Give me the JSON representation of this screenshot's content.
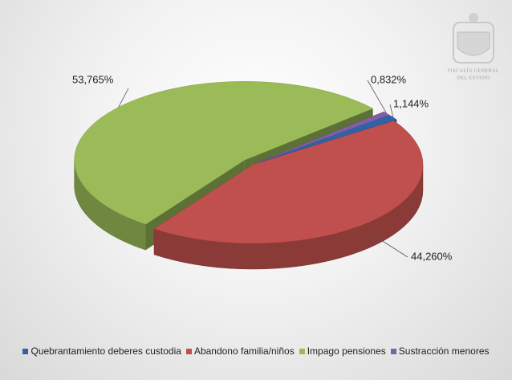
{
  "chart_data": {
    "type": "pie",
    "categories": [
      "Quebrantamiento deberes custodia",
      "Abandono familia/niños",
      "Impago pensiones",
      "Sustracción menores"
    ],
    "values": [
      1.144,
      44.26,
      53.765,
      0.832
    ],
    "value_labels": [
      "1,144%",
      "44,260%",
      "53,765%",
      "0,832%"
    ],
    "colors": [
      "#2f63a8",
      "#c0504d",
      "#9bbb59",
      "#7f5fa5"
    ],
    "legend": "bottom"
  },
  "logo": {
    "lines": [
      "FISCALÍA GENERAL",
      "DEL ESTADO"
    ]
  }
}
